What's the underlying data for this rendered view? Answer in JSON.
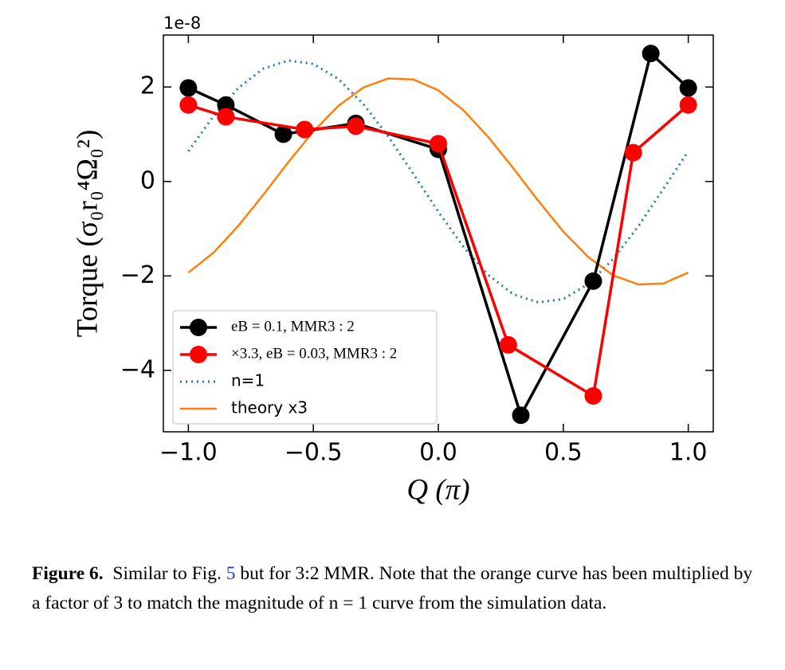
{
  "chart_data": {
    "type": "line",
    "ylabel": "Torque (σ₀r₀⁴Ω₀²)",
    "xlabel": "Q (π)",
    "y_offset_label": "1e-8",
    "xlim": [
      -1.1,
      1.1
    ],
    "ylim": [
      -5.3,
      3.1
    ],
    "xticks": [
      {
        "value": -1.0,
        "label": "−1.0"
      },
      {
        "value": -0.5,
        "label": "−0.5"
      },
      {
        "value": 0.0,
        "label": "0.0"
      },
      {
        "value": 0.5,
        "label": "0.5"
      },
      {
        "value": 1.0,
        "label": "1.0"
      }
    ],
    "yticks": [
      {
        "value": -4,
        "label": "−4"
      },
      {
        "value": -2,
        "label": "−2"
      },
      0,
      2
    ],
    "legend": "lower left",
    "series": [
      {
        "name": "eB = 0.1, MMR3 : 2",
        "color": "#000000",
        "style": "marker",
        "x": [
          -1.0,
          -0.85,
          -0.62,
          -0.33,
          0.0,
          0.33,
          0.62,
          0.85,
          1.0
        ],
        "values": [
          1.98,
          1.62,
          1.0,
          1.23,
          0.68,
          -4.95,
          -2.11,
          2.71,
          1.98
        ]
      },
      {
        "name": "×3.3, eB = 0.03, MMR3 : 2",
        "color": "#ff0000",
        "style": "marker",
        "x": [
          -1.0,
          -0.85,
          -0.535,
          -0.33,
          0.0,
          0.28,
          0.62,
          0.78,
          1.0
        ],
        "values": [
          1.62,
          1.37,
          1.1,
          1.17,
          0.8,
          -3.46,
          -4.54,
          0.61,
          1.62
        ]
      },
      {
        "name": "n=1",
        "color": "#1f77b4",
        "style": "dotted",
        "x": [
          -1.0,
          -0.9,
          -0.8,
          -0.7,
          -0.6,
          -0.5,
          -0.4,
          -0.3,
          -0.2,
          -0.1,
          0.0,
          0.1,
          0.2,
          0.3,
          0.4,
          0.5,
          0.6,
          0.7,
          0.8,
          0.9,
          1.0
        ],
        "values": [
          0.64,
          1.38,
          1.98,
          2.39,
          2.56,
          2.49,
          2.17,
          1.64,
          0.95,
          0.16,
          -0.64,
          -1.38,
          -1.98,
          -2.39,
          -2.56,
          -2.49,
          -2.17,
          -1.64,
          -0.95,
          -0.16,
          0.64
        ]
      },
      {
        "name": "theory x3",
        "color": "#ff7f0e",
        "style": "solid",
        "x": [
          -1.0,
          -0.9,
          -0.8,
          -0.7,
          -0.6,
          -0.5,
          -0.4,
          -0.3,
          -0.2,
          -0.1,
          0.0,
          0.1,
          0.2,
          0.3,
          0.4,
          0.5,
          0.6,
          0.7,
          0.8,
          0.9,
          1.0
        ],
        "values": [
          -1.93,
          -1.51,
          -0.94,
          -0.28,
          0.41,
          1.06,
          1.6,
          1.99,
          2.18,
          2.16,
          1.93,
          1.51,
          0.94,
          0.28,
          -0.41,
          -1.06,
          -1.6,
          -1.99,
          -2.18,
          -2.16,
          -1.93
        ]
      }
    ]
  },
  "caption": {
    "label": "Figure 6.",
    "before": "Similar to Fig.",
    "link": "5",
    "after": "but for 3:2 MMR. Note that the orange curve has been multiplied by a factor of 3 to match the magnitude of n = 1 curve from the simulation data."
  }
}
